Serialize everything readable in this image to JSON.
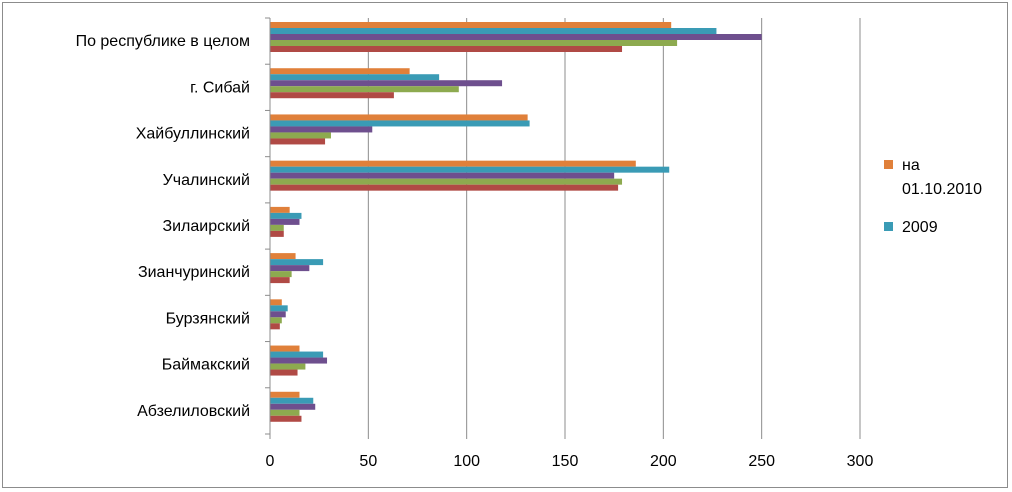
{
  "chart_data": {
    "type": "bar",
    "orientation": "horizontal",
    "title": "",
    "xlabel": "",
    "ylabel": "",
    "xlim": [
      0,
      300
    ],
    "x_ticks": [
      "0",
      "50",
      "100",
      "150",
      "200",
      "250",
      "300"
    ],
    "grid": "vertical",
    "legend_position": "right",
    "categories": [
      "По республике в целом",
      "г. Сибай",
      "Хайбуллинский",
      "Учалинский",
      "Зилаирский",
      "Зианчуринский",
      "Бурзянский",
      "Баймакский",
      "Абзелиловский"
    ],
    "series": [
      {
        "name": "на 01.10.2010",
        "legend_lines": [
          "на",
          "01.10.2010"
        ],
        "color": "#E0803A",
        "values": [
          204,
          71,
          131,
          186,
          10,
          13,
          6,
          15,
          15
        ]
      },
      {
        "name": "2009",
        "legend_lines": [
          "2009"
        ],
        "color": "#3A9BB5",
        "values": [
          227,
          86,
          132,
          203,
          16,
          27,
          9,
          27,
          22
        ]
      },
      {
        "color": "#6E4F8E",
        "values": [
          250,
          118,
          52,
          175,
          15,
          20,
          8,
          29,
          23
        ]
      },
      {
        "color": "#8DAA4F",
        "values": [
          207,
          96,
          31,
          179,
          7,
          11,
          6,
          18,
          15
        ]
      },
      {
        "color": "#B04A45",
        "values": [
          179,
          63,
          28,
          177,
          7,
          10,
          5,
          14,
          16
        ]
      }
    ]
  }
}
